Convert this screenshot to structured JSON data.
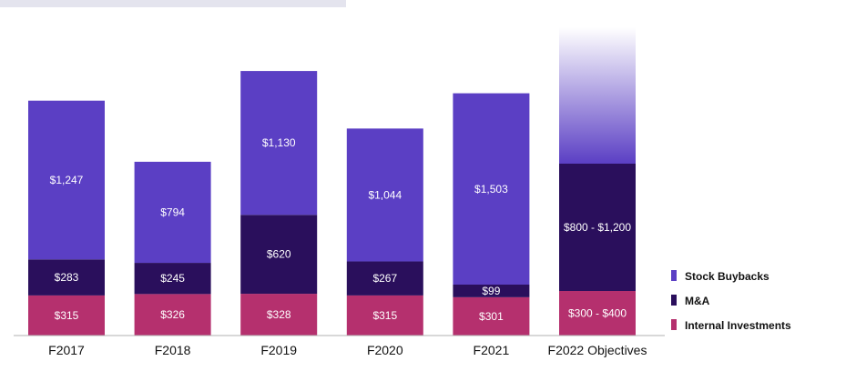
{
  "chart_data": {
    "type": "bar",
    "stacked": true,
    "categories": [
      "F2017",
      "F2018",
      "F2019",
      "F2020",
      "F2021",
      "F2022 Objectives"
    ],
    "series": [
      {
        "name": "Internal Investments",
        "color": "#b5306e",
        "values": [
          315,
          326,
          328,
          315,
          301,
          350
        ],
        "labels": [
          "$315",
          "$326",
          "$328",
          "$315",
          "$301",
          "$300 - $400"
        ]
      },
      {
        "name": "M&A",
        "color": "#2a0f5c",
        "values": [
          283,
          245,
          620,
          267,
          99,
          1000
        ],
        "labels": [
          "$283",
          "$245",
          "$620",
          "$267",
          "$99",
          "$800 - $1,200"
        ]
      },
      {
        "name": "Stock Buybacks",
        "color": "#5b3fc4",
        "values": [
          1247,
          794,
          1130,
          1044,
          1503,
          null
        ],
        "labels": [
          "$1,247",
          "$794",
          "$1,130",
          "$1,044",
          "$1,503",
          ""
        ]
      }
    ],
    "ylim": [
      0,
      2100
    ],
    "grid": false,
    "legend_position": "right",
    "legend_order": [
      "Stock Buybacks",
      "M&A",
      "Internal Investments"
    ]
  }
}
